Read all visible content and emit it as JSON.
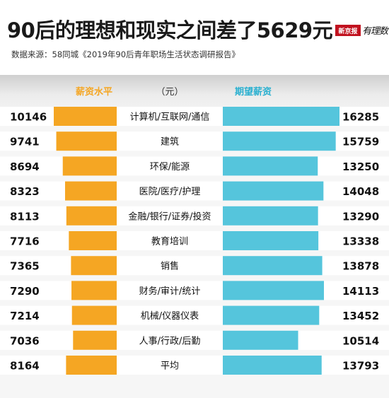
{
  "title": "90后的理想和现实之间差了5629元",
  "source": "数据来源：58同城《2019年90后青年职场生活状态调研报告》",
  "logo": {
    "box_text": "新京报",
    "script_text": "有理数"
  },
  "colors": {
    "left_bar": "#f5a623",
    "right_bar": "#55c5dc",
    "left_header": "#f5a623",
    "right_header": "#2ab0d0"
  },
  "chart_data": {
    "type": "bar",
    "title": "90后的理想和现实之间差了5629元",
    "unit_label": "（元）",
    "categories": [
      "计算机/互联网/通信",
      "建筑",
      "环保/能源",
      "医院/医疗/护理",
      "金融/银行/证券/投资",
      "教育培训",
      "销售",
      "财务/审计/统计",
      "机械/仪器仪表",
      "人事/行政/后勤",
      "平均"
    ],
    "series": [
      {
        "name": "薪资水平",
        "values": [
          10146,
          9741,
          8694,
          8323,
          8113,
          7716,
          7365,
          7290,
          7214,
          7036,
          8164
        ]
      },
      {
        "name": "期望薪资",
        "values": [
          16285,
          15759,
          13250,
          14048,
          13290,
          13338,
          13878,
          14113,
          13452,
          10514,
          13793
        ]
      }
    ]
  }
}
